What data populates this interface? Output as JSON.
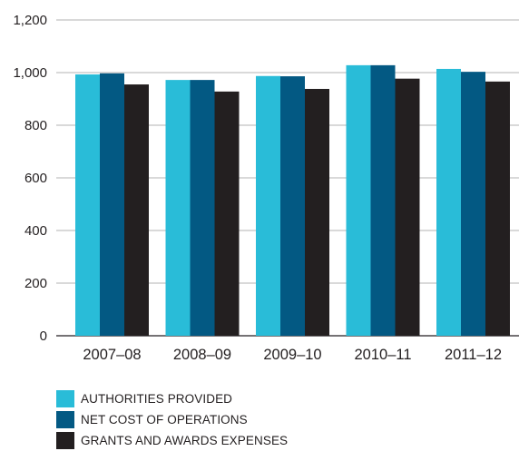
{
  "chart_data": {
    "type": "bar",
    "categories": [
      "2007–08",
      "2008–09",
      "2009–10",
      "2010–11",
      "2011–12"
    ],
    "series": [
      {
        "name": "AUTHORITIES PROVIDED",
        "color": "#29bcd8",
        "values": [
          993,
          972,
          987,
          1028,
          1014
        ]
      },
      {
        "name": "NET COST OF OPERATIONS",
        "color": "#035983",
        "values": [
          997,
          972,
          986,
          1028,
          1003
        ]
      },
      {
        "name": "GRANTS AND AWARDS EXPENSES",
        "color": "#231f20",
        "values": [
          955,
          928,
          938,
          977,
          966
        ]
      }
    ],
    "y_ticks": [
      "0",
      "200",
      "400",
      "600",
      "800",
      "1,000",
      "1,200"
    ],
    "ylim": [
      0,
      1200
    ],
    "grid": true,
    "legend_position": "bottom-left"
  }
}
